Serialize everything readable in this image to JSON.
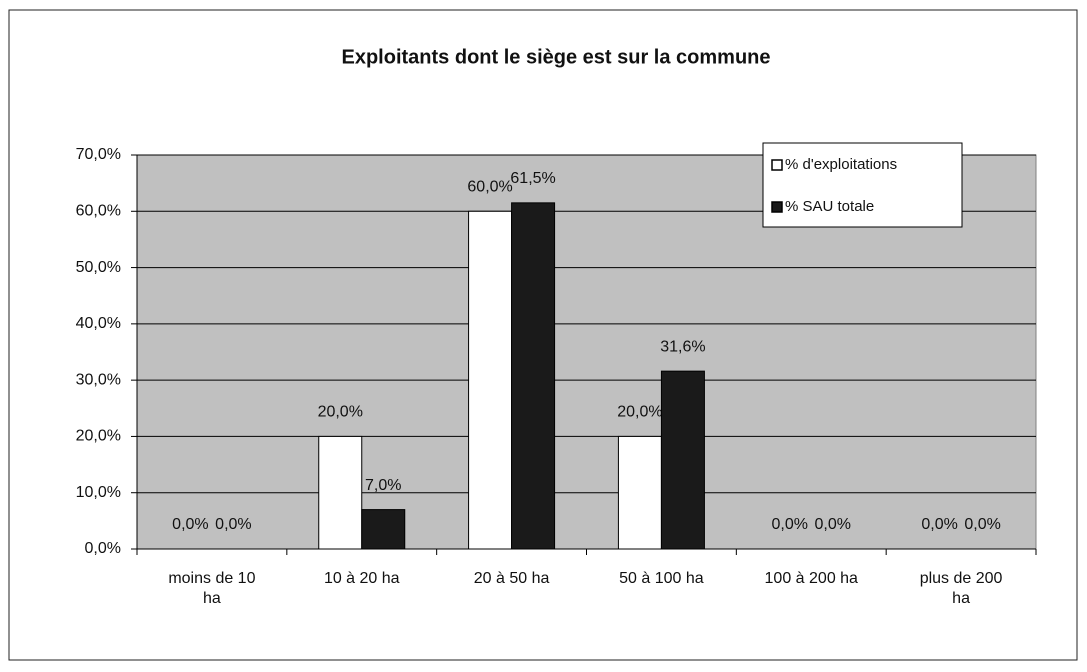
{
  "chart_data": {
    "type": "bar",
    "title": "Exploitants dont le siège est sur la commune",
    "categories": [
      "moins de 10 ha",
      "10 à 20 ha",
      "20 à 50 ha",
      "50 à 100 ha",
      "100 à 200 ha",
      "plus de 200 ha"
    ],
    "series": [
      {
        "name": "% d'exploitations",
        "color": "#ffffff",
        "values": [
          0,
          20,
          60,
          20,
          0,
          0
        ],
        "value_labels": [
          "0,0%",
          "20,0%",
          "60,0%",
          "20,0%",
          "0,0%",
          "0,0%"
        ]
      },
      {
        "name": "% SAU totale",
        "color": "#1a1a1a",
        "values": [
          0,
          7,
          61.5,
          31.6,
          0,
          0
        ],
        "value_labels": [
          "0,0%",
          "7,0%",
          "61,5%",
          "31,6%",
          "0,0%",
          "0,0%"
        ]
      }
    ],
    "ylim": [
      0,
      70
    ],
    "yticks": [
      {
        "value": 0,
        "label": "0,0%"
      },
      {
        "value": 10,
        "label": "10,0%"
      },
      {
        "value": 20,
        "label": "20,0%"
      },
      {
        "value": 30,
        "label": "30,0%"
      },
      {
        "value": 40,
        "label": "40,0%"
      },
      {
        "value": 50,
        "label": "50,0%"
      },
      {
        "value": 60,
        "label": "60,0%"
      },
      {
        "value": 70,
        "label": "70,0%"
      }
    ],
    "grid": true,
    "legend": "top-right"
  }
}
